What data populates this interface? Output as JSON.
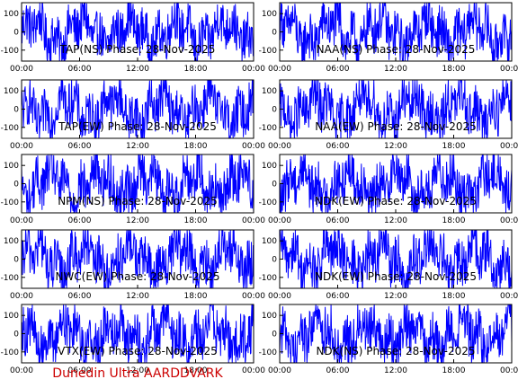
{
  "footer": "Dunedin Ultra AARDDVARK",
  "colors": {
    "trace": "#0000ff",
    "axes": "#000000",
    "footer": "#cc0000",
    "background": "#ffffff"
  },
  "chart_data": [
    {
      "type": "line",
      "title": "TAP(NS) Phase: 28-Nov-2025",
      "x_ticks": [
        "00:00",
        "06:00",
        "12:00",
        "18:00",
        "00:00"
      ],
      "y_ticks": [
        "100",
        "0",
        "-100"
      ],
      "ylim": [
        -160,
        160
      ],
      "xlim_hours": [
        0,
        24
      ],
      "grid": false,
      "series": [
        {
          "color": "#0000ff",
          "note_pattern": "dense",
          "amplitude": 140
        }
      ]
    },
    {
      "type": "line",
      "title": "NAA(NS) Phase: 28-Nov-2025",
      "x_ticks": [
        "00:00",
        "06:00",
        "12:00",
        "18:00",
        "00:00"
      ],
      "y_ticks": [
        "100",
        "0",
        "-100"
      ],
      "ylim": [
        -160,
        160
      ],
      "xlim_hours": [
        0,
        24
      ],
      "grid": false,
      "series": [
        {
          "color": "#0000ff",
          "amplitude": 150
        }
      ]
    },
    {
      "type": "line",
      "title": "TAP(EW) Phase: 28-Nov-2025",
      "x_ticks": [
        "00:00",
        "06:00",
        "12:00",
        "18:00",
        "00:00"
      ],
      "y_ticks": [
        "100",
        "0",
        "-100"
      ],
      "ylim": [
        -160,
        160
      ],
      "xlim_hours": [
        0,
        24
      ],
      "grid": false,
      "series": [
        {
          "color": "#0000ff",
          "amplitude": 145
        }
      ]
    },
    {
      "type": "line",
      "title": "NAA(EW) Phase: 28-Nov-2025",
      "x_ticks": [
        "00:00",
        "06:00",
        "12:00",
        "18:00",
        "00:00"
      ],
      "y_ticks": [
        "100",
        "0",
        "-100"
      ],
      "ylim": [
        -160,
        160
      ],
      "xlim_hours": [
        0,
        24
      ],
      "grid": false,
      "series": [
        {
          "color": "#0000ff",
          "amplitude": 150
        }
      ]
    },
    {
      "type": "line",
      "title": "NPM(NS) Phase: 28-Nov-2025",
      "x_ticks": [
        "00:00",
        "06:00",
        "12:00",
        "18:00",
        "00:00"
      ],
      "y_ticks": [
        "100",
        "0",
        "-100"
      ],
      "ylim": [
        -160,
        160
      ],
      "xlim_hours": [
        0,
        24
      ],
      "grid": false,
      "series": [
        {
          "color": "#0000ff",
          "amplitude": 150
        }
      ]
    },
    {
      "type": "line",
      "title": "NDK(EW) Phase: 28-Nov-2025",
      "x_ticks": [
        "00:00",
        "06:00",
        "12:00",
        "18:00",
        "00:00"
      ],
      "y_ticks": [
        "100",
        "0",
        "-100"
      ],
      "ylim": [
        -160,
        160
      ],
      "xlim_hours": [
        0,
        24
      ],
      "grid": false,
      "series": [
        {
          "color": "#0000ff",
          "amplitude": 150
        }
      ]
    },
    {
      "type": "line",
      "title": "NWC(EW) Phase: 28-Nov-2025",
      "x_ticks": [
        "00:00",
        "06:00",
        "12:00",
        "18:00",
        "00:00"
      ],
      "y_ticks": [
        "100",
        "0",
        "-100"
      ],
      "ylim": [
        -160,
        160
      ],
      "xlim_hours": [
        0,
        24
      ],
      "grid": false,
      "series": [
        {
          "color": "#0000ff",
          "amplitude": 150
        }
      ]
    },
    {
      "type": "line",
      "title": "NDK(EW) Phase: 28-Nov-2025",
      "x_ticks": [
        "00:00",
        "06:00",
        "12:00",
        "18:00",
        "00:00"
      ],
      "y_ticks": [
        "100",
        "0",
        "-100"
      ],
      "ylim": [
        -160,
        160
      ],
      "xlim_hours": [
        0,
        24
      ],
      "grid": false,
      "series": [
        {
          "color": "#0000ff",
          "amplitude": 150
        }
      ]
    },
    {
      "type": "line",
      "title": "VTX(EW) Phase: 28-Nov-2025",
      "x_ticks": [
        "00:00",
        "06:00",
        "12:00",
        "18:00",
        "00:00"
      ],
      "y_ticks": [
        "100",
        "0",
        "-100"
      ],
      "ylim": [
        -160,
        160
      ],
      "xlim_hours": [
        0,
        24
      ],
      "grid": false,
      "series": [
        {
          "color": "#0000ff",
          "amplitude": 150
        }
      ]
    },
    {
      "type": "line",
      "title": "NDK(NS) Phase: 28-Nov-2025",
      "x_ticks": [
        "00:00",
        "06:00",
        "12:00",
        "18:00",
        "00:00"
      ],
      "y_ticks": [
        "100",
        "0",
        "-100"
      ],
      "ylim": [
        -160,
        160
      ],
      "xlim_hours": [
        0,
        24
      ],
      "grid": false,
      "series": [
        {
          "color": "#0000ff",
          "amplitude": 150
        }
      ]
    }
  ]
}
